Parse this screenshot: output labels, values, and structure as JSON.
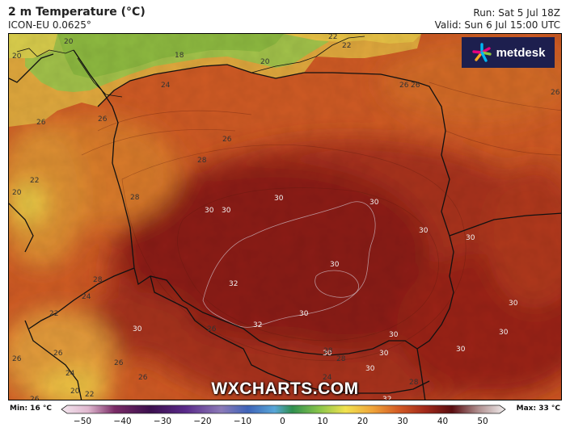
{
  "header": {
    "title": "2 m Temperature (°C)",
    "model": "ICON-EU 0.0625°",
    "run": "Run: Sat 5 Jul 18Z",
    "valid": "Valid: Sun 6 Jul 15:00 UTC"
  },
  "logo": {
    "name": "metdesk",
    "colors": [
      "#e6007e",
      "#00b7f1",
      "#f7a823",
      "#8bc53f"
    ],
    "background": "#1d1f4e"
  },
  "watermark": "WXCHARTS.COM",
  "legend": {
    "min_label": "Min: 16 °C",
    "max_label": "Max: 33 °C",
    "ticks": [
      "−50",
      "−40",
      "−30",
      "−20",
      "−10",
      "0",
      "10",
      "20",
      "30",
      "40",
      "50"
    ]
  },
  "map_labels": [
    "20",
    "20",
    "18",
    "20",
    "22",
    "22",
    "24",
    "26",
    "26",
    "26",
    "26",
    "26",
    "26",
    "28",
    "30",
    "30",
    "30",
    "30",
    "30",
    "30",
    "30",
    "30",
    "30",
    "30",
    "30",
    "30",
    "30",
    "30",
    "30",
    "30",
    "32",
    "32",
    "32",
    "22",
    "20",
    "28",
    "28",
    "24",
    "22",
    "26",
    "26",
    "26",
    "26",
    "26",
    "24",
    "24",
    "20",
    "22",
    "26",
    "28",
    "28",
    "28"
  ]
}
